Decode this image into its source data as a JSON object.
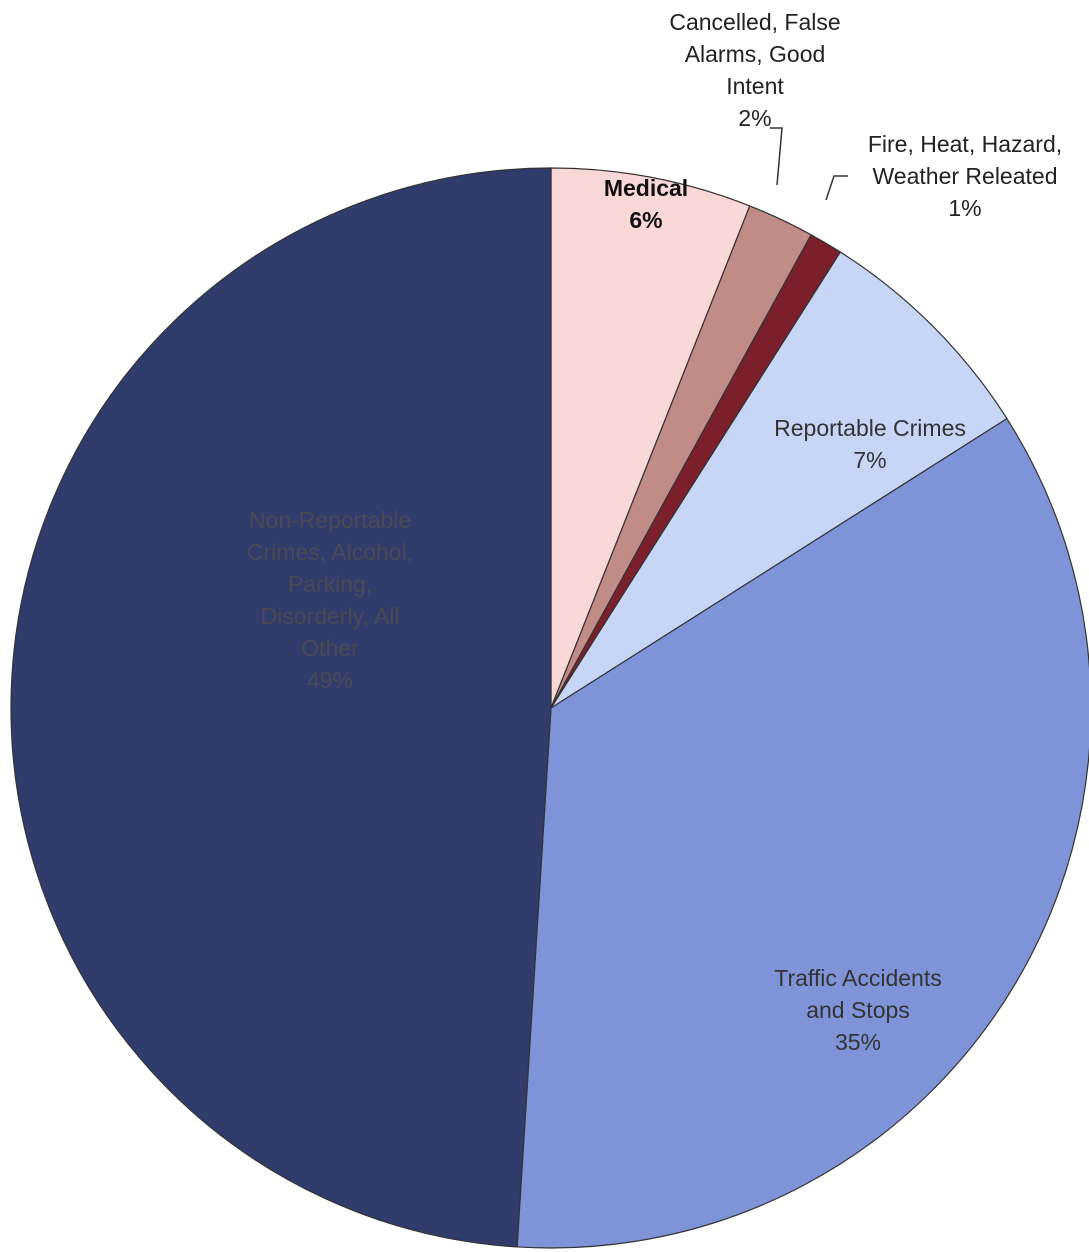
{
  "chart_data": {
    "type": "pie",
    "categories": [
      "Medical",
      "Cancelled, False Alarms, Good Intent",
      "Fire, Heat, Hazard, Weather Releated",
      "Reportable Crimes",
      "Traffic Accidents and Stops",
      "Non-Reportable Crimes, Alcohol, Parking, Disorderly, All Other"
    ],
    "values": [
      6,
      2,
      1,
      7,
      35,
      49
    ],
    "value_labels": [
      "6%",
      "2%",
      "1%",
      "7%",
      "35%",
      "49%"
    ],
    "colors": [
      "#fbd8d8",
      "#c18b87",
      "#7b1f2a",
      "#c7d6f6",
      "#7f93d9",
      "#2f3c6c"
    ]
  }
}
